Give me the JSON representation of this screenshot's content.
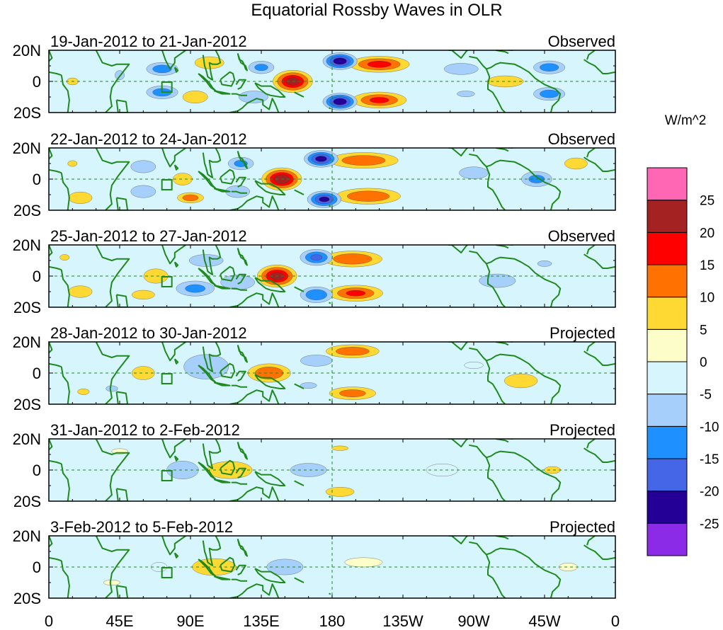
{
  "chart_data": {
    "type": "heatmap",
    "title": "Equatorial Rossby Waves in OLR",
    "colorbar": {
      "unit_label": "W/m^2",
      "colors": [
        "#8b2be8",
        "#240096",
        "#4566e6",
        "#1e90ff",
        "#a6d0fb",
        "#d7f5fd",
        "#fdfdca",
        "#fed933",
        "#ff7100",
        "#ff0000",
        "#a52222",
        "#ff66b3"
      ],
      "tick_labels": [
        "-25",
        "-20",
        "-15",
        "-10",
        "-5",
        "0",
        "5",
        "10",
        "15",
        "20",
        "25"
      ],
      "levels": [
        -25,
        -20,
        -15,
        -10,
        -5,
        0,
        5,
        10,
        15,
        20,
        25
      ]
    },
    "x_tick_labels": [
      "0",
      "45E",
      "90E",
      "135E",
      "180",
      "135W",
      "90W",
      "45W",
      "0"
    ],
    "x_ticks_lon": [
      0,
      45,
      90,
      135,
      180,
      225,
      270,
      315,
      360
    ],
    "y_tick_labels": [
      "20N",
      "0",
      "20S"
    ],
    "y_range": [
      -20,
      20
    ],
    "x_range": [
      0,
      360
    ],
    "panels": [
      {
        "date_range": "19-Jan-2012 to 21-Jan-2012",
        "kind": "Observed",
        "blobs": [
          {
            "lon": 155,
            "lat": 0,
            "value": 22,
            "rx": 14,
            "ry": 8
          },
          {
            "lon": 210,
            "lat": 11,
            "value": 16,
            "rx": 22,
            "ry": 6
          },
          {
            "lon": 210,
            "lat": -12,
            "value": 15,
            "rx": 20,
            "ry": 6
          },
          {
            "lon": 185,
            "lat": 13,
            "value": -24,
            "rx": 12,
            "ry": 6
          },
          {
            "lon": 185,
            "lat": -13,
            "value": -24,
            "rx": 12,
            "ry": 6
          },
          {
            "lon": 72,
            "lat": 8,
            "value": -12,
            "rx": 12,
            "ry": 5
          },
          {
            "lon": 72,
            "lat": -7,
            "value": -12,
            "rx": 12,
            "ry": 5
          },
          {
            "lon": 102,
            "lat": 12,
            "value": 8,
            "rx": 12,
            "ry": 5
          },
          {
            "lon": 93,
            "lat": -10,
            "value": 9,
            "rx": 10,
            "ry": 5
          },
          {
            "lon": 135,
            "lat": 9,
            "value": -10,
            "rx": 10,
            "ry": 5
          },
          {
            "lon": 130,
            "lat": -10,
            "value": -8,
            "rx": 12,
            "ry": 5
          },
          {
            "lon": 262,
            "lat": 8,
            "value": -6,
            "rx": 15,
            "ry": 5
          },
          {
            "lon": 265,
            "lat": -8,
            "value": -5,
            "rx": 15,
            "ry": 5
          },
          {
            "lon": 318,
            "lat": 9,
            "value": -12,
            "rx": 12,
            "ry": 5
          },
          {
            "lon": 318,
            "lat": -8,
            "value": -12,
            "rx": 12,
            "ry": 5
          },
          {
            "lon": 290,
            "lat": 0,
            "value": 6,
            "rx": 16,
            "ry": 5
          },
          {
            "lon": 15,
            "lat": 0,
            "value": 5,
            "rx": 10,
            "ry": 6
          },
          {
            "lon": 45,
            "lat": 4,
            "value": -5,
            "rx": 8,
            "ry": 8
          }
        ]
      },
      {
        "date_range": "22-Jan-2012 to 24-Jan-2012",
        "kind": "Observed",
        "blobs": [
          {
            "lon": 148,
            "lat": 0,
            "value": 24,
            "rx": 14,
            "ry": 8
          },
          {
            "lon": 200,
            "lat": 12,
            "value": 13,
            "rx": 26,
            "ry": 6
          },
          {
            "lon": 203,
            "lat": -11,
            "value": 14,
            "rx": 24,
            "ry": 6
          },
          {
            "lon": 173,
            "lat": 13,
            "value": -22,
            "rx": 12,
            "ry": 6
          },
          {
            "lon": 175,
            "lat": -13,
            "value": -21,
            "rx": 12,
            "ry": 6
          },
          {
            "lon": 85,
            "lat": 0,
            "value": 8,
            "rx": 8,
            "ry": 5
          },
          {
            "lon": 90,
            "lat": -12,
            "value": 12,
            "rx": 10,
            "ry": 4
          },
          {
            "lon": 60,
            "lat": 8,
            "value": -9,
            "rx": 10,
            "ry": 5
          },
          {
            "lon": 60,
            "lat": -8,
            "value": -9,
            "rx": 10,
            "ry": 5
          },
          {
            "lon": 122,
            "lat": 10,
            "value": -10,
            "rx": 10,
            "ry": 5
          },
          {
            "lon": 120,
            "lat": -8,
            "value": -8,
            "rx": 10,
            "ry": 5
          },
          {
            "lon": 270,
            "lat": 4,
            "value": -8,
            "rx": 12,
            "ry": 5
          },
          {
            "lon": 310,
            "lat": 0,
            "value": -10,
            "rx": 12,
            "ry": 6
          },
          {
            "lon": 335,
            "lat": 10,
            "value": 6,
            "rx": 10,
            "ry": 5
          },
          {
            "lon": 20,
            "lat": -12,
            "value": 7,
            "rx": 10,
            "ry": 5
          },
          {
            "lon": 15,
            "lat": 10,
            "value": 5,
            "rx": 8,
            "ry": 5
          }
        ]
      },
      {
        "date_range": "25-Jan-2012 to 27-Jan-2012",
        "kind": "Observed",
        "blobs": [
          {
            "lon": 145,
            "lat": 0,
            "value": 22,
            "rx": 14,
            "ry": 8
          },
          {
            "lon": 193,
            "lat": 11,
            "value": 14,
            "rx": 22,
            "ry": 6
          },
          {
            "lon": 195,
            "lat": -11,
            "value": 15,
            "rx": 20,
            "ry": 6
          },
          {
            "lon": 170,
            "lat": 12,
            "value": -15,
            "rx": 12,
            "ry": 6
          },
          {
            "lon": 170,
            "lat": -12,
            "value": -14,
            "rx": 12,
            "ry": 6
          },
          {
            "lon": 93,
            "lat": -8,
            "value": -10,
            "rx": 15,
            "ry": 6
          },
          {
            "lon": 120,
            "lat": -4,
            "value": -8,
            "rx": 14,
            "ry": 6
          },
          {
            "lon": 100,
            "lat": 10,
            "value": -8,
            "rx": 14,
            "ry": 5
          },
          {
            "lon": 68,
            "lat": 0,
            "value": 8,
            "rx": 10,
            "ry": 6
          },
          {
            "lon": 60,
            "lat": -12,
            "value": 6,
            "rx": 10,
            "ry": 4
          },
          {
            "lon": 285,
            "lat": -3,
            "value": -6,
            "rx": 16,
            "ry": 6
          },
          {
            "lon": 315,
            "lat": 8,
            "value": -5,
            "rx": 12,
            "ry": 5
          },
          {
            "lon": 20,
            "lat": -10,
            "value": 7,
            "rx": 10,
            "ry": 5
          },
          {
            "lon": 10,
            "lat": 12,
            "value": 5,
            "rx": 8,
            "ry": 5
          }
        ]
      },
      {
        "date_range": "28-Jan-2012 to 30-Jan-2012",
        "kind": "Projected",
        "blobs": [
          {
            "lon": 140,
            "lat": 0,
            "value": 14,
            "rx": 16,
            "ry": 7
          },
          {
            "lon": 193,
            "lat": 14,
            "value": 13,
            "rx": 20,
            "ry": 5
          },
          {
            "lon": 193,
            "lat": -13,
            "value": 11,
            "rx": 18,
            "ry": 5
          },
          {
            "lon": 100,
            "lat": 4,
            "value": -9,
            "rx": 18,
            "ry": 10
          },
          {
            "lon": 170,
            "lat": 8,
            "value": -6,
            "rx": 14,
            "ry": 5
          },
          {
            "lon": 165,
            "lat": -8,
            "value": -5,
            "rx": 14,
            "ry": 5
          },
          {
            "lon": 60,
            "lat": 0,
            "value": 6,
            "rx": 10,
            "ry": 6
          },
          {
            "lon": 40,
            "lat": -10,
            "value": -5,
            "rx": 10,
            "ry": 5
          },
          {
            "lon": 300,
            "lat": -5,
            "value": 7,
            "rx": 14,
            "ry": 6
          },
          {
            "lon": 22,
            "lat": -12,
            "value": 5,
            "rx": 10,
            "ry": 5
          },
          {
            "lon": 270,
            "lat": 5,
            "value": -4,
            "rx": 14,
            "ry": 5
          }
        ]
      },
      {
        "date_range": "31-Jan-2012 to 2-Feb-2012",
        "kind": "Projected",
        "blobs": [
          {
            "lon": 115,
            "lat": 0,
            "value": 9,
            "rx": 18,
            "ry": 7
          },
          {
            "lon": 165,
            "lat": 0,
            "value": -6,
            "rx": 16,
            "ry": 6
          },
          {
            "lon": 85,
            "lat": 0,
            "value": -6,
            "rx": 14,
            "ry": 8
          },
          {
            "lon": 185,
            "lat": 14,
            "value": 5,
            "rx": 14,
            "ry": 4
          },
          {
            "lon": 185,
            "lat": -14,
            "value": 7,
            "rx": 12,
            "ry": 4
          },
          {
            "lon": 320,
            "lat": 0,
            "value": 5,
            "rx": 14,
            "ry": 6
          },
          {
            "lon": 45,
            "lat": 12,
            "value": 4,
            "rx": 12,
            "ry": 4
          },
          {
            "lon": 250,
            "lat": 0,
            "value": -3,
            "rx": 20,
            "ry": 8
          }
        ]
      },
      {
        "date_range": "3-Feb-2012 to 5-Feb-2012",
        "kind": "Projected",
        "blobs": [
          {
            "lon": 105,
            "lat": 0,
            "value": 8,
            "rx": 18,
            "ry": 7
          },
          {
            "lon": 150,
            "lat": 0,
            "value": -6,
            "rx": 16,
            "ry": 7
          },
          {
            "lon": 70,
            "lat": 0,
            "value": -4,
            "rx": 12,
            "ry": 7
          },
          {
            "lon": 200,
            "lat": 3,
            "value": 3,
            "rx": 24,
            "ry": 6
          },
          {
            "lon": 330,
            "lat": 0,
            "value": 4,
            "rx": 14,
            "ry": 6
          },
          {
            "lon": 40,
            "lat": -10,
            "value": 4,
            "rx": 12,
            "ry": 4
          }
        ]
      }
    ]
  }
}
